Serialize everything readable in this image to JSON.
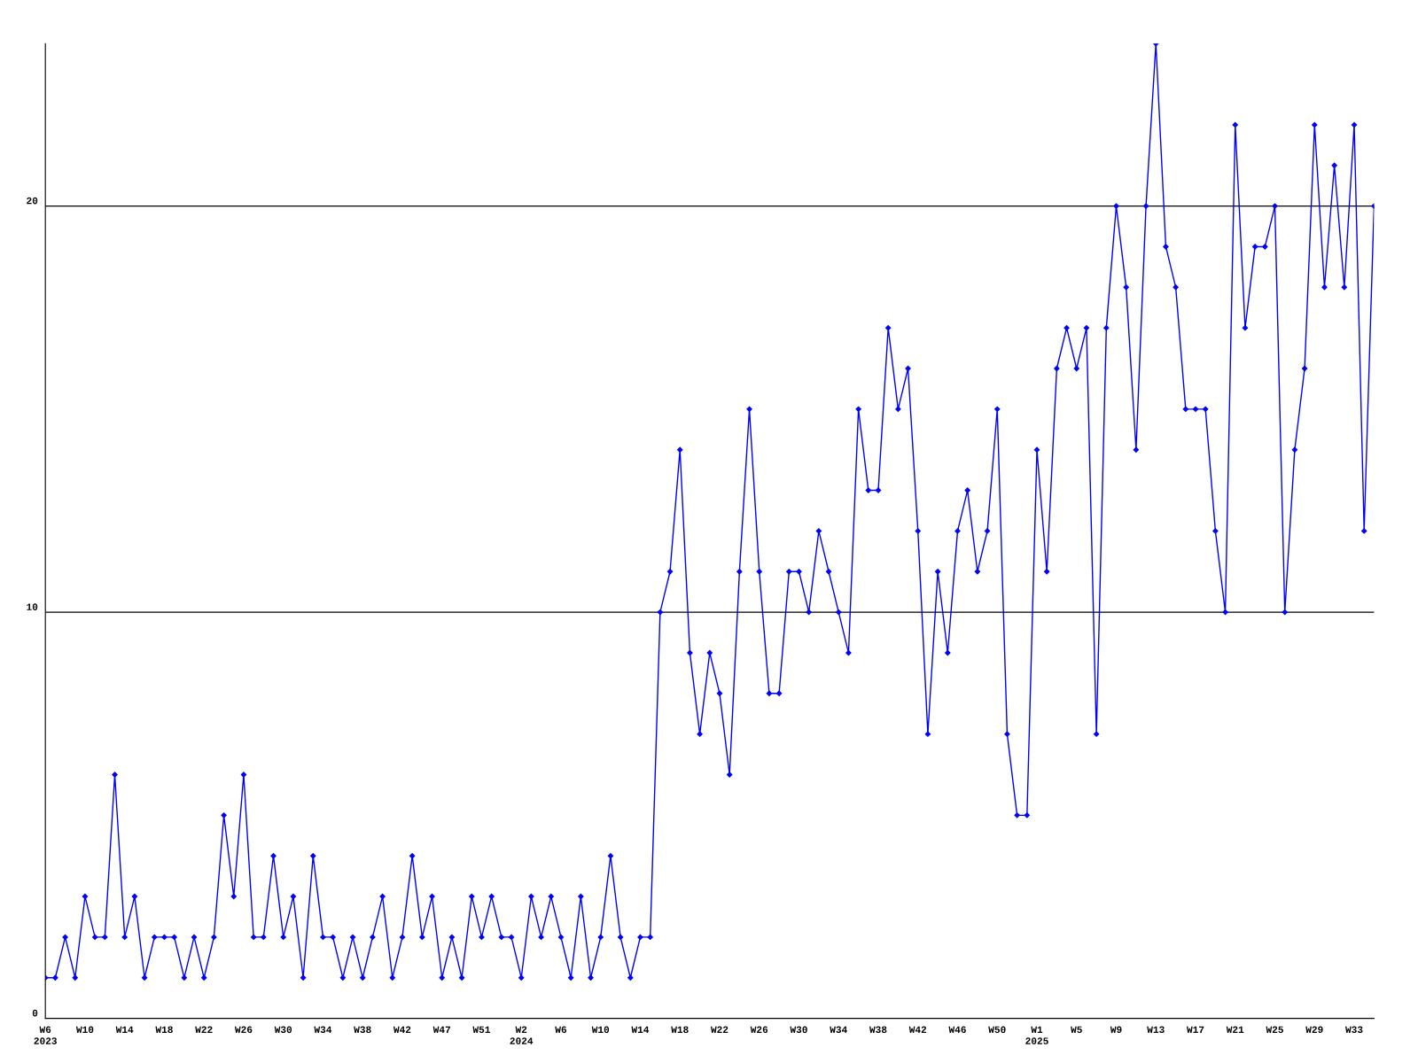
{
  "chart_data": {
    "type": "line",
    "categories": [
      "W6\n2023",
      null,
      null,
      null,
      "W10",
      null,
      null,
      null,
      "W14",
      null,
      null,
      null,
      "W18",
      null,
      null,
      null,
      "W22",
      null,
      null,
      null,
      "W26",
      null,
      null,
      null,
      "W30",
      null,
      null,
      null,
      "W34",
      null,
      null,
      null,
      "W38",
      null,
      null,
      null,
      "W42",
      null,
      null,
      null,
      "W47",
      null,
      null,
      null,
      "W51",
      null,
      null,
      null,
      "W2\n2024",
      null,
      null,
      null,
      "W6",
      null,
      null,
      null,
      "W10",
      null,
      null,
      null,
      "W14",
      null,
      null,
      null,
      "W18",
      null,
      null,
      null,
      "W22",
      null,
      null,
      null,
      "W26",
      null,
      null,
      null,
      "W30",
      null,
      null,
      null,
      "W34",
      null,
      null,
      null,
      "W38",
      null,
      null,
      null,
      "W42",
      null,
      null,
      null,
      "W46",
      null,
      null,
      null,
      "W50",
      null,
      null,
      null,
      "W1\n2025",
      null,
      null,
      null,
      "W5",
      null,
      null,
      null,
      "W9",
      null,
      null,
      null,
      "W13",
      null,
      null,
      null,
      "W17",
      null,
      null,
      null,
      "W21",
      null,
      null,
      null,
      "W25",
      null,
      null,
      null,
      "W29",
      null,
      null,
      null,
      "W33",
      null,
      null
    ],
    "series": [
      {
        "color": "#0000ff",
        "values": [
          1,
          1,
          2,
          1,
          3,
          2,
          2,
          6,
          2,
          3,
          1,
          2,
          2,
          2,
          1,
          2,
          1,
          2,
          5,
          3,
          6,
          2,
          2,
          4,
          2,
          3,
          1,
          4,
          2,
          2,
          1,
          2,
          1,
          2,
          3,
          1,
          2,
          4,
          2,
          3,
          1,
          2,
          1,
          3,
          2,
          3,
          2,
          2,
          1,
          3,
          2,
          3,
          2,
          1,
          3,
          1,
          2,
          4,
          2,
          1,
          2,
          2,
          10,
          11,
          14,
          9,
          7,
          9,
          8,
          6,
          11,
          15,
          11,
          8,
          8,
          11,
          11,
          10,
          12,
          11,
          10,
          9,
          15,
          13,
          13,
          17,
          15,
          16,
          12,
          7,
          11,
          9,
          12,
          13,
          11,
          12,
          15,
          7,
          5,
          5,
          14,
          11,
          16,
          17,
          16,
          17,
          7,
          17,
          20,
          18,
          14,
          20,
          24,
          19,
          18,
          15,
          15,
          15,
          12,
          10,
          22,
          17,
          19,
          19,
          20,
          10,
          14,
          16,
          22,
          18,
          21,
          18,
          22,
          12,
          20
        ]
      }
    ],
    "ylim": [
      0,
      24
    ],
    "yticks": [
      0,
      10,
      20
    ],
    "grid": "y",
    "marker": "diamond",
    "line_style": "solid",
    "legend": false
  }
}
